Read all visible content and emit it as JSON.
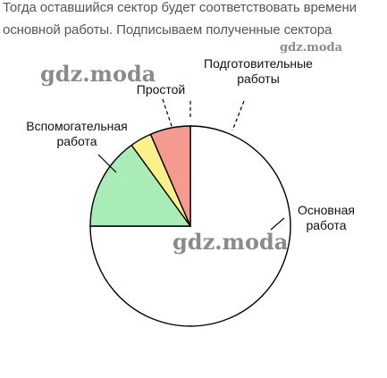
{
  "intro": {
    "line1": "Тогда оставшийся сектор будет соответствовать времени",
    "line2": "основной работы. Подписываем полученные сектора"
  },
  "watermarks": {
    "wm1": "gdz.moda",
    "wm2": "gdz.moda",
    "wm3": "gdz.moda"
  },
  "colors": {
    "main": "#ffffff",
    "auxiliary": "#a9ecb8",
    "idle": "#fbf08a",
    "prep": "#f59a8f",
    "outline": "#000000"
  },
  "chart_data": {
    "type": "pie",
    "title": "",
    "slices": [
      {
        "key": "main",
        "label": [
          "Основная",
          "работа"
        ],
        "value": 75
      },
      {
        "key": "auxiliary",
        "label": [
          "Вспомогательная",
          "работа"
        ],
        "value": 15
      },
      {
        "key": "idle",
        "label": [
          "Простой"
        ],
        "value": 3.5
      },
      {
        "key": "prep",
        "label": [
          "Подготовительные",
          "работы"
        ],
        "value": 6.5
      }
    ]
  }
}
